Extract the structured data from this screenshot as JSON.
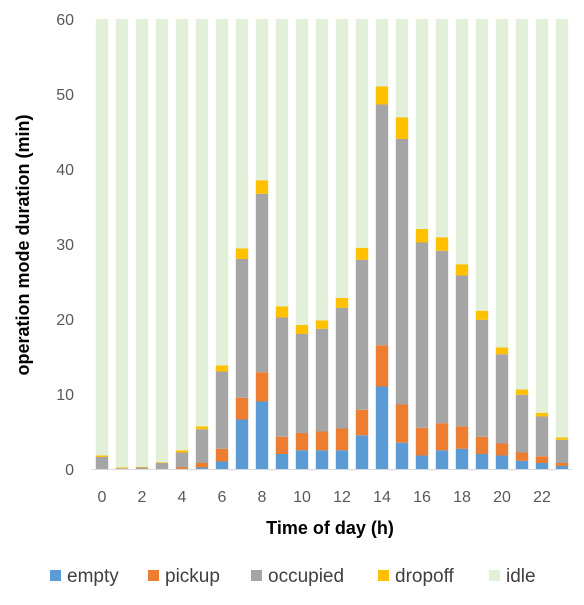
{
  "chart_data": {
    "type": "bar",
    "stacked": true,
    "xlabel": "Time of day  (h)",
    "ylabel": "operation mode duration (min)",
    "ylim": [
      0,
      60
    ],
    "yticks": [
      0,
      10,
      20,
      30,
      40,
      50,
      60
    ],
    "xtick_labels": [
      "0",
      "2",
      "4",
      "6",
      "8",
      "10",
      "12",
      "14",
      "16",
      "18",
      "20",
      "22"
    ],
    "categories": [
      "0",
      "1",
      "2",
      "3",
      "4",
      "5",
      "6",
      "7",
      "8",
      "9",
      "10",
      "11",
      "12",
      "13",
      "14",
      "15",
      "16",
      "17",
      "18",
      "19",
      "20",
      "21",
      "22",
      "23"
    ],
    "legend_position": "bottom",
    "series": [
      {
        "name": "empty",
        "color": "#5B9BD5",
        "values": [
          0,
          0,
          0,
          0,
          0,
          0.2,
          1,
          6.6,
          9,
          2,
          2.5,
          2.5,
          2.5,
          4.5,
          11,
          3.5,
          1.8,
          2.5,
          2.7,
          2,
          1.8,
          1.1,
          0.8,
          0.4
        ]
      },
      {
        "name": "pickup",
        "color": "#ED7D31",
        "values": [
          0,
          0,
          0,
          0,
          0.2,
          0.6,
          1.7,
          2.9,
          3.9,
          2.3,
          2.3,
          2.5,
          2.9,
          3.4,
          5.5,
          5.1,
          3.7,
          3.6,
          3.0,
          2.3,
          1.6,
          1.1,
          0.9,
          0.4
        ]
      },
      {
        "name": "occupied",
        "color": "#A5A5A5",
        "values": [
          1.6,
          0.1,
          0.2,
          0.8,
          2.0,
          4.5,
          10.3,
          18.5,
          23.8,
          15.9,
          13.2,
          13.7,
          16.1,
          20.0,
          32.1,
          35.4,
          24.7,
          23.0,
          20.1,
          15.6,
          11.9,
          7.7,
          5.3,
          3.1
        ]
      },
      {
        "name": "dropoff",
        "color": "#FFC000",
        "values": [
          0.2,
          0.1,
          0.1,
          0.1,
          0.3,
          0.4,
          0.8,
          1.4,
          1.8,
          1.5,
          1.2,
          1.1,
          1.3,
          1.6,
          2.4,
          2.9,
          1.8,
          1.8,
          1.5,
          1.2,
          0.9,
          0.7,
          0.5,
          0.3
        ]
      },
      {
        "name": "idle",
        "color": "#E2F0D9",
        "values": [
          58.2,
          59.8,
          59.7,
          59.1,
          57.5,
          54.3,
          46.2,
          30.6,
          21.5,
          38.3,
          40.8,
          40.2,
          37.2,
          30.5,
          9.0,
          13.1,
          28.0,
          29.1,
          32.7,
          38.9,
          43.8,
          49.4,
          52.5,
          55.8
        ]
      }
    ]
  }
}
